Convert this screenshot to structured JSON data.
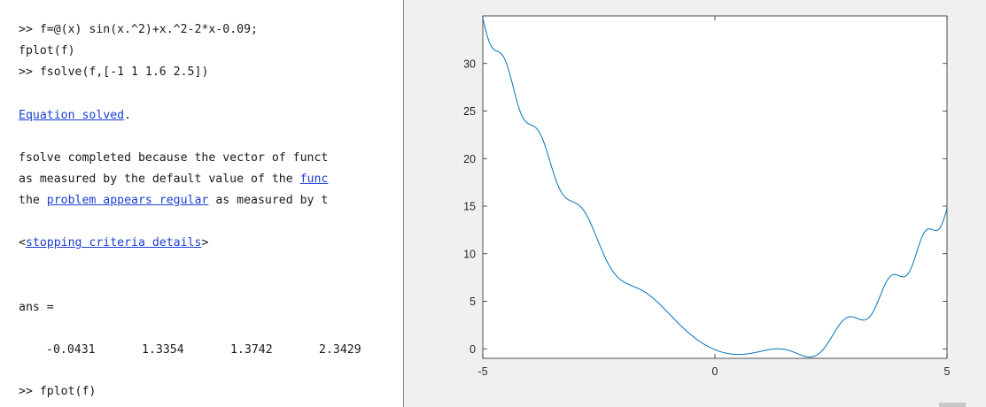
{
  "console": {
    "lines": [
      {
        "prompt": ">> ",
        "text": "f=@(x) sin(x.^2)+x.^2-2*x-0.09;"
      },
      {
        "prompt": "",
        "text": "fplot(f)"
      },
      {
        "prompt": ">> ",
        "text": "fsolve(f,[-1 1 1.6 2.5])"
      }
    ],
    "solved_link": "Equation solved",
    "solved_period": ".",
    "fsolve_msg_1": "fsolve completed because the vector of funct",
    "fsolve_msg_2_pre": "as measured by the default value of the ",
    "fsolve_msg_2_link": "func",
    "fsolve_msg_3_pre": "the ",
    "fsolve_msg_3_link": "problem appears regular",
    "fsolve_msg_3_post": " as measured by t",
    "criteria_open": "<",
    "criteria_link": "stopping criteria details",
    "criteria_close": ">",
    "ans_label": "ans =",
    "ans_values": [
      "-0.0431",
      "1.3354",
      "1.3742",
      "2.3429"
    ],
    "last_prompt": ">> ",
    "last_command": "fplot(f)",
    "cursor_glyph": "ˆ"
  },
  "chart_data": {
    "type": "line",
    "function": "sin(x.^2)+x.^2-2*x-0.09",
    "xlim": [
      -5,
      5
    ],
    "ylim": [
      -1,
      35
    ],
    "xticks": [
      -5,
      0,
      5
    ],
    "yticks": [
      0,
      5,
      10,
      15,
      20,
      25,
      30
    ],
    "xtick_labels": [
      "-5",
      "0",
      "5"
    ],
    "ytick_labels": [
      "0",
      "5",
      "10",
      "15",
      "20",
      "25",
      "30"
    ],
    "grid": false,
    "line_color": "#0072bd",
    "title": "",
    "xlabel": "",
    "ylabel": ""
  },
  "colors": {
    "link": "#1a3fd6",
    "figure_bg": "#f0f0f0",
    "axes_bg": "#ffffff",
    "line": "#0072bd"
  }
}
